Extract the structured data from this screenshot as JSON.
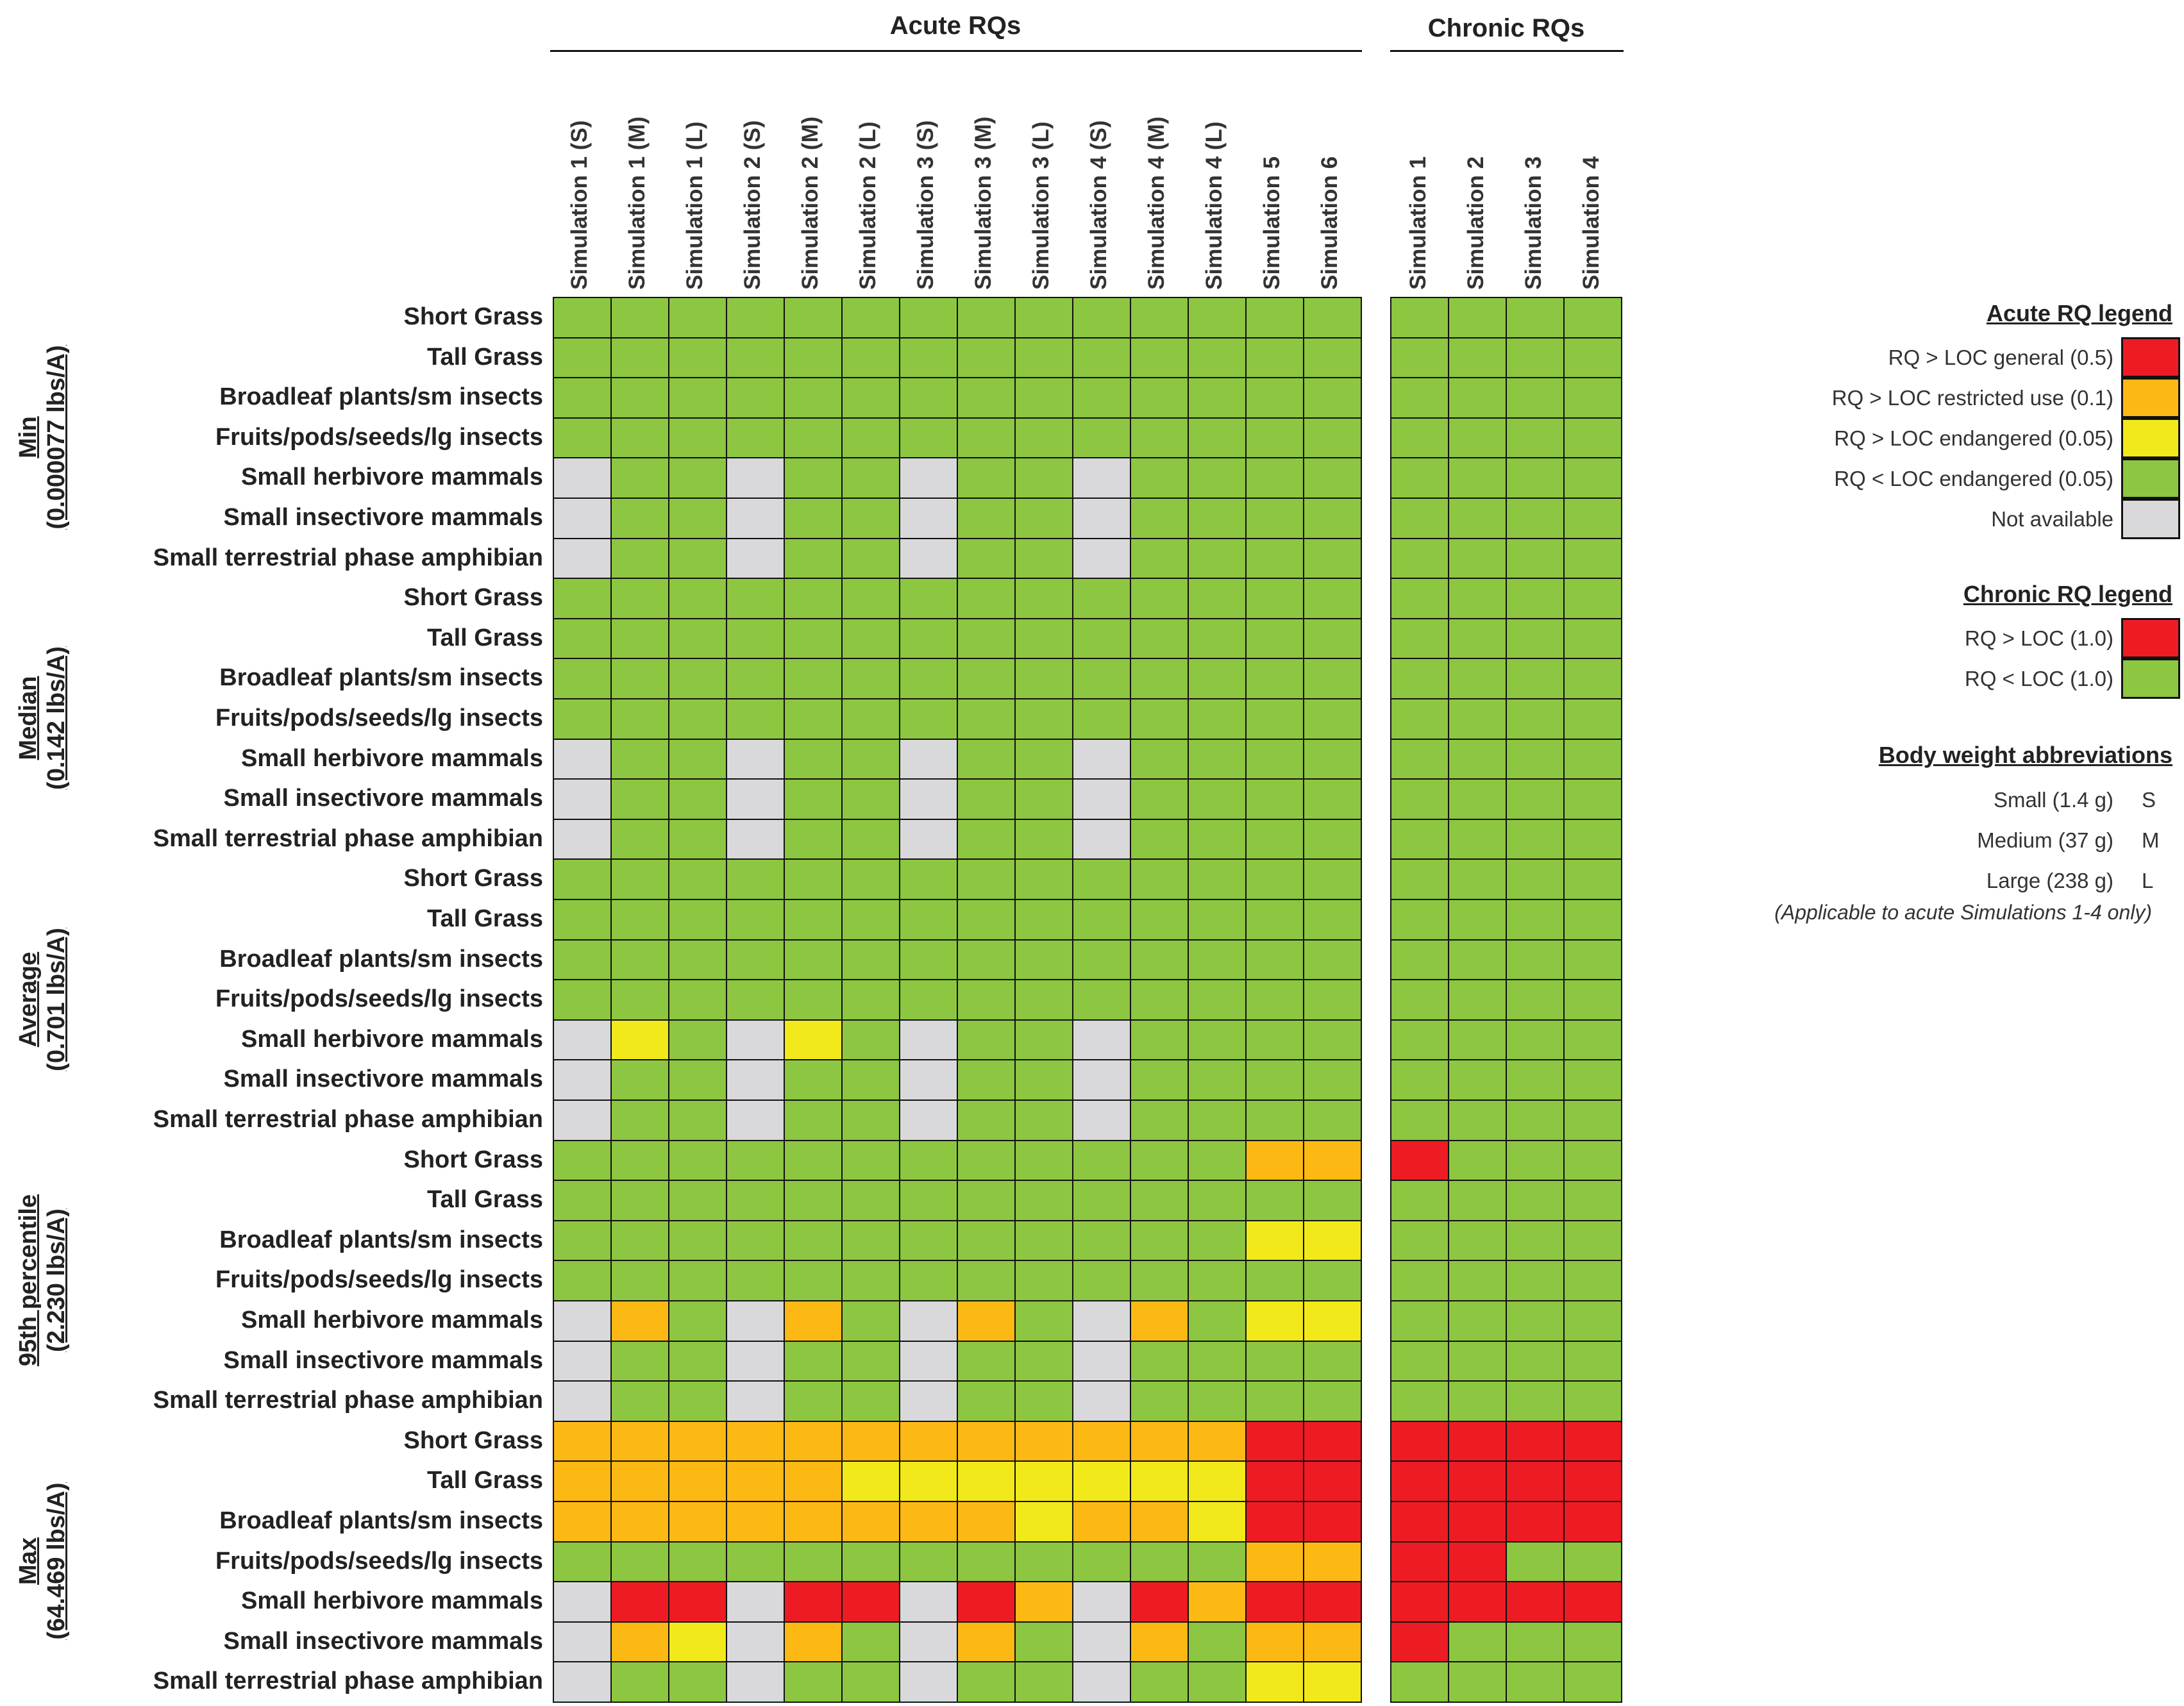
{
  "chart_data": {
    "type": "heatmap",
    "title_acute": "Acute RQs",
    "title_chronic": "Chronic RQs",
    "acute_columns": [
      "Simulation 1 (S)",
      "Simulation 1 (M)",
      "Simulation 1 (L)",
      "Simulation 2 (S)",
      "Simulation 2 (M)",
      "Simulation 2 (L)",
      "Simulation 3 (S)",
      "Simulation 3 (M)",
      "Simulation 3 (L)",
      "Simulation 4 (S)",
      "Simulation 4 (M)",
      "Simulation 4 (L)",
      "Simulation 5",
      "Simulation 6"
    ],
    "chronic_columns": [
      "Simulation 1",
      "Simulation 2",
      "Simulation 3",
      "Simulation 4"
    ],
    "row_labels": [
      "Short Grass",
      "Tall Grass",
      "Broadleaf plants/sm insects",
      "Fruits/pods/seeds/lg insects",
      "Small herbivore mammals",
      "Small insectivore mammals",
      "Small terrestrial phase amphibian"
    ],
    "codes": {
      "R": "RQ > LOC general (0.5) / RQ > LOC (1.0)",
      "O": "RQ > LOC restricted use (0.1)",
      "Y": "RQ > LOC endangered (0.05)",
      "G": "RQ < LOC",
      "N": "Not available"
    },
    "groups": [
      {
        "name": "Min",
        "value": "(0.000077 lbs/A)",
        "acute": [
          "GGGGGGGGGGGGGG",
          "GGGGGGGGGGGGGG",
          "GGGGGGGGGGGGGG",
          "GGGGGGGGGGGGGG",
          "NGGNGGNGGNGGGG",
          "NGGNGGNGGNGGGG",
          "NGGNGGNGGNGGGG"
        ],
        "chronic": [
          "GGGG",
          "GGGG",
          "GGGG",
          "GGGG",
          "GGGG",
          "GGGG",
          "GGGG"
        ]
      },
      {
        "name": "Median",
        "value": "(0.142 lbs/A)",
        "acute": [
          "GGGGGGGGGGGGGG",
          "GGGGGGGGGGGGGG",
          "GGGGGGGGGGGGGG",
          "GGGGGGGGGGGGGG",
          "NGGNGGNGGNGGGG",
          "NGGNGGNGGNGGGG",
          "NGGNGGNGGNGGGG"
        ],
        "chronic": [
          "GGGG",
          "GGGG",
          "GGGG",
          "GGGG",
          "GGGG",
          "GGGG",
          "GGGG"
        ]
      },
      {
        "name": "Average",
        "value": "(0.701 lbs/A)",
        "acute": [
          "GGGGGGGGGGGGGG",
          "GGGGGGGGGGGGGG",
          "GGGGGGGGGGGGGG",
          "GGGGGGGGGGGGGG",
          "NYGNYGNGGNGGGG",
          "NGGNGGNGGNGGGG",
          "NGGNGGNGGNGGGG"
        ],
        "chronic": [
          "GGGG",
          "GGGG",
          "GGGG",
          "GGGG",
          "GGGG",
          "GGGG",
          "GGGG"
        ]
      },
      {
        "name": "95th percentile",
        "value": "(2.230 lbs/A)",
        "acute": [
          "GGGGGGGGGGGGOO",
          "GGGGGGGGGGGGGG",
          "GGGGGGGGGGGGYY",
          "GGGGGGGGGGGGGG",
          "NOGNOGNOGNOGYY",
          "NGGNGGNGGNGGGG",
          "NGGNGGNGGNGGGG"
        ],
        "chronic": [
          "RGGG",
          "GGGG",
          "GGGG",
          "GGGG",
          "GGGG",
          "GGGG",
          "GGGG"
        ]
      },
      {
        "name": "Max",
        "value": "(64.469 lbs/A)",
        "acute": [
          "OOOOOOOOOOOORR",
          "OOOOOYYYYYYYRR",
          "OOOOOOOOYOOYRR",
          "GGGGGGGGGGGGOO",
          "NRRNRRNRONRORR",
          "NOYNOGNOGNOGOO",
          "NGGNGGNGGNGGYY"
        ],
        "chronic": [
          "RRRR",
          "RRRR",
          "RRRR",
          "RRGG",
          "RRRR",
          "RGGG",
          "GGGG"
        ]
      }
    ]
  },
  "colors": {
    "R": "#ed1c24",
    "O": "#fdb913",
    "Y": "#f2e91a",
    "G": "#8dc641",
    "N": "#d9d9db"
  },
  "legend": {
    "acute_title": "Acute RQ legend",
    "acute_items": [
      {
        "label": "RQ > LOC general (0.5)",
        "code": "R"
      },
      {
        "label": "RQ > LOC restricted use (0.1)",
        "code": "O"
      },
      {
        "label": "RQ > LOC endangered (0.05)",
        "code": "Y"
      },
      {
        "label": "RQ < LOC endangered (0.05)",
        "code": "G"
      },
      {
        "label": "Not available",
        "code": "N"
      }
    ],
    "chronic_title": "Chronic RQ legend",
    "chronic_items": [
      {
        "label": "RQ > LOC (1.0)",
        "code": "R"
      },
      {
        "label": "RQ < LOC (1.0)",
        "code": "G"
      }
    ],
    "bw_title": "Body weight abbreviations",
    "bw_items": [
      {
        "label": "Small (1.4 g)",
        "abbr": "S"
      },
      {
        "label": "Medium (37 g)",
        "abbr": "M"
      },
      {
        "label": "Large (238 g)",
        "abbr": "L"
      }
    ],
    "bw_note": "(Applicable to acute Simulations 1-4 only)"
  }
}
